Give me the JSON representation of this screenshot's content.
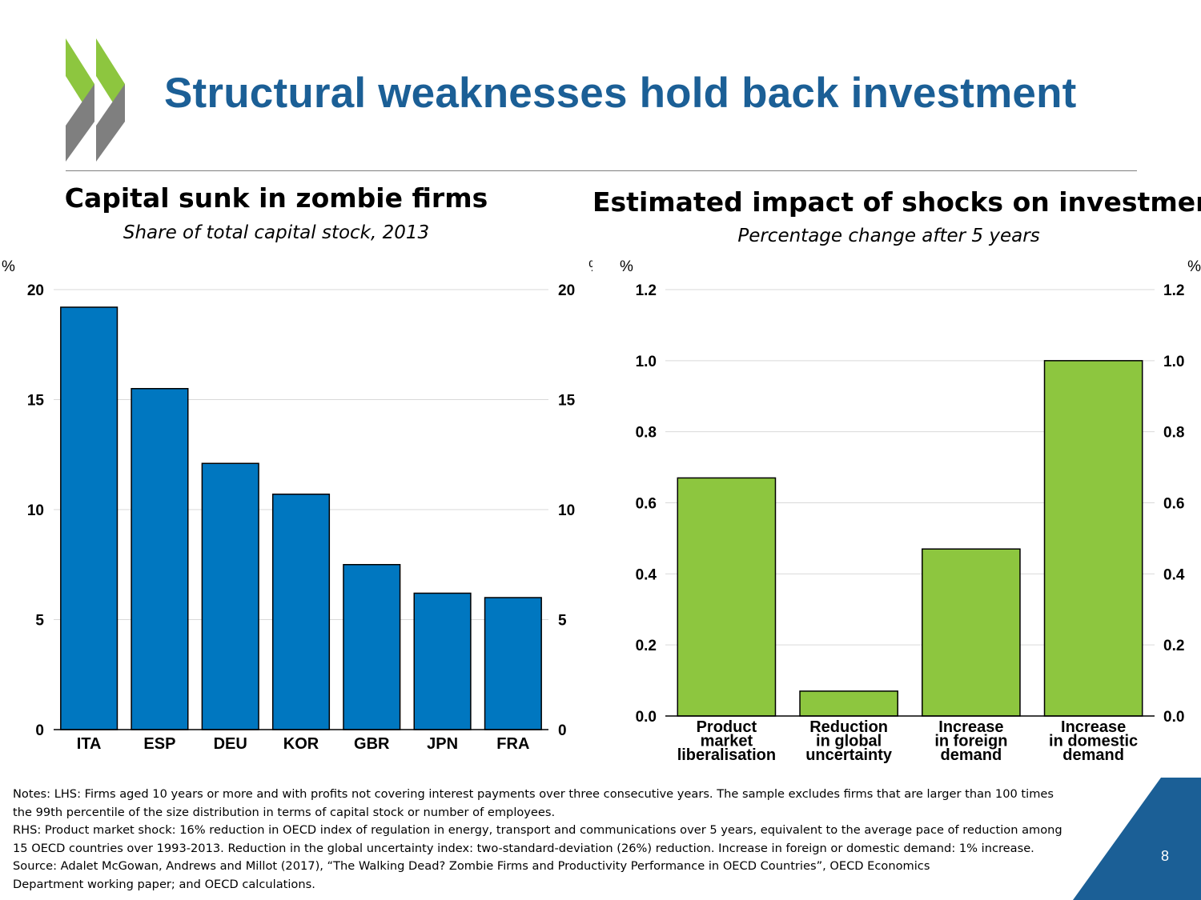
{
  "slide": {
    "title": "Structural weaknesses hold back investment",
    "page_number": "8",
    "colors": {
      "title": "#1b5f96",
      "logo_green": "#8dc63f",
      "logo_grey": "#7f7f7f",
      "corner": "#1b5f96"
    }
  },
  "left_chart": {
    "title": "Capital sunk in zombie firms",
    "subtitle": "Share of total capital stock, 2013"
  },
  "right_chart": {
    "title": "Estimated impact of shocks on investment",
    "subtitle": "Percentage change after 5 years"
  },
  "notes": {
    "lines": [
      "Notes: LHS: Firms aged 10 years or more and with profits not covering interest payments over three consecutive years. The sample excludes firms that are larger than 100 times",
      "the 99th percentile of the size distribution in terms of capital stock or number of employees.",
      "RHS: Product market shock: 16% reduction in OECD index of regulation in energy, transport and communications over 5 years, equivalent to the average pace of reduction among",
      "15 OECD countries  over 1993-2013. Reduction in the global uncertainty index: two-standard-deviation (26%) reduction. Increase in foreign or domestic demand: 1% increase.",
      "Source: Adalet McGowan, Andrews and Millot (2017), “The Walking Dead? Zombie Firms and Productivity Performance in OECD Countries”, OECD Economics",
      "Department working paper; and OECD calculations."
    ]
  },
  "chart_data": [
    {
      "type": "bar",
      "title": "Capital sunk in zombie firms",
      "subtitle": "Share of total capital stock, 2013",
      "categories": [
        "ITA",
        "ESP",
        "DEU",
        "KOR",
        "GBR",
        "JPN",
        "FRA"
      ],
      "values": [
        19.2,
        15.5,
        12.1,
        10.7,
        7.5,
        6.2,
        6.0
      ],
      "ylabel": "%",
      "ylim": [
        0,
        20
      ],
      "yticks": [
        0,
        5,
        10,
        15,
        20
      ],
      "ytick_labels": [
        "0",
        "5",
        "10",
        "15",
        "20"
      ],
      "unit": "%",
      "color": "#0077c0",
      "grid": true,
      "axes": "left and right"
    },
    {
      "type": "bar",
      "title": "Estimated impact of shocks on investment",
      "subtitle": "Percentage change after 5 years",
      "categories": [
        [
          "Product",
          "market",
          "liberalisation"
        ],
        [
          "Reduction",
          "in global",
          "uncertainty"
        ],
        [
          "Increase",
          "in foreign",
          "demand"
        ],
        [
          "Increase",
          "in domestic",
          "demand"
        ]
      ],
      "values": [
        0.67,
        0.07,
        0.47,
        1.0
      ],
      "ylabel": "%",
      "ylim": [
        0,
        1.2
      ],
      "yticks": [
        0,
        0.2,
        0.4,
        0.6,
        0.8,
        1.0,
        1.2
      ],
      "ytick_labels": [
        "0.0",
        "0.2",
        "0.4",
        "0.6",
        "0.8",
        "1.0",
        "1.2"
      ],
      "unit": "%",
      "color": "#8dc63f",
      "grid": true,
      "axes": "left and right"
    }
  ]
}
